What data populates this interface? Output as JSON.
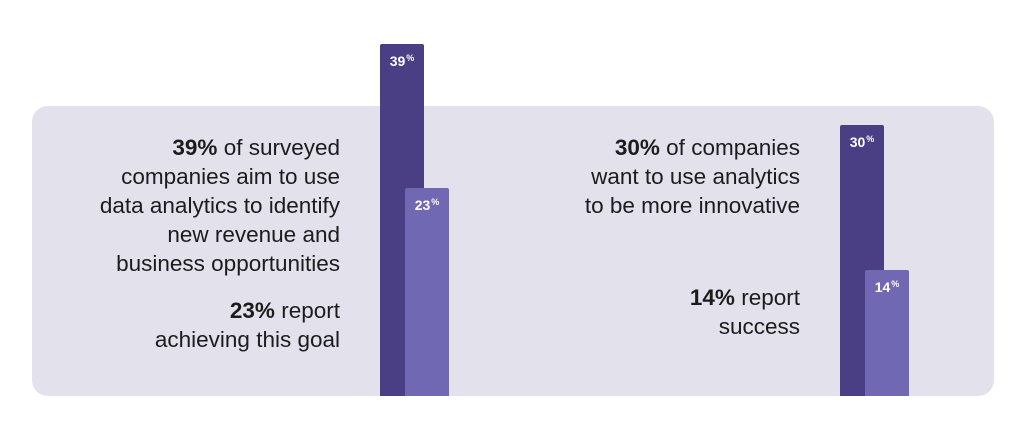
{
  "chart_data": [
    {
      "type": "bar",
      "title": "",
      "categories": [
        "Aim to use data analytics to identify new revenue and business opportunities",
        "Report achieving this goal"
      ],
      "values": [
        39,
        23
      ],
      "unit": "%",
      "ylim": [
        0,
        40
      ]
    },
    {
      "type": "bar",
      "title": "",
      "categories": [
        "Want to use analytics to be more innovative",
        "Report success"
      ],
      "values": [
        30,
        14
      ],
      "unit": "%",
      "ylim": [
        0,
        40
      ]
    }
  ],
  "colors": {
    "panel": "#e3e1ec",
    "bar_dark": "#4a3e85",
    "bar_light": "#7168b4"
  },
  "left": {
    "stat1": {
      "bold": "39%",
      "lines": [
        "of surveyed",
        "companies aim to use",
        "data analytics to identify",
        "new revenue and",
        "business opportunities"
      ]
    },
    "stat2": {
      "bold": "23%",
      "lines": [
        "report",
        "achieving this goal"
      ]
    },
    "bar1": {
      "num": "39",
      "unit": "%"
    },
    "bar2": {
      "num": "23",
      "unit": "%"
    }
  },
  "right": {
    "stat1": {
      "bold": "30%",
      "lines": [
        "of companies",
        "want to use analytics",
        "to be more innovative"
      ]
    },
    "stat2": {
      "bold": "14%",
      "lines": [
        "report",
        "success"
      ]
    },
    "bar1": {
      "num": "30",
      "unit": "%"
    },
    "bar2": {
      "num": "14",
      "unit": "%"
    }
  }
}
